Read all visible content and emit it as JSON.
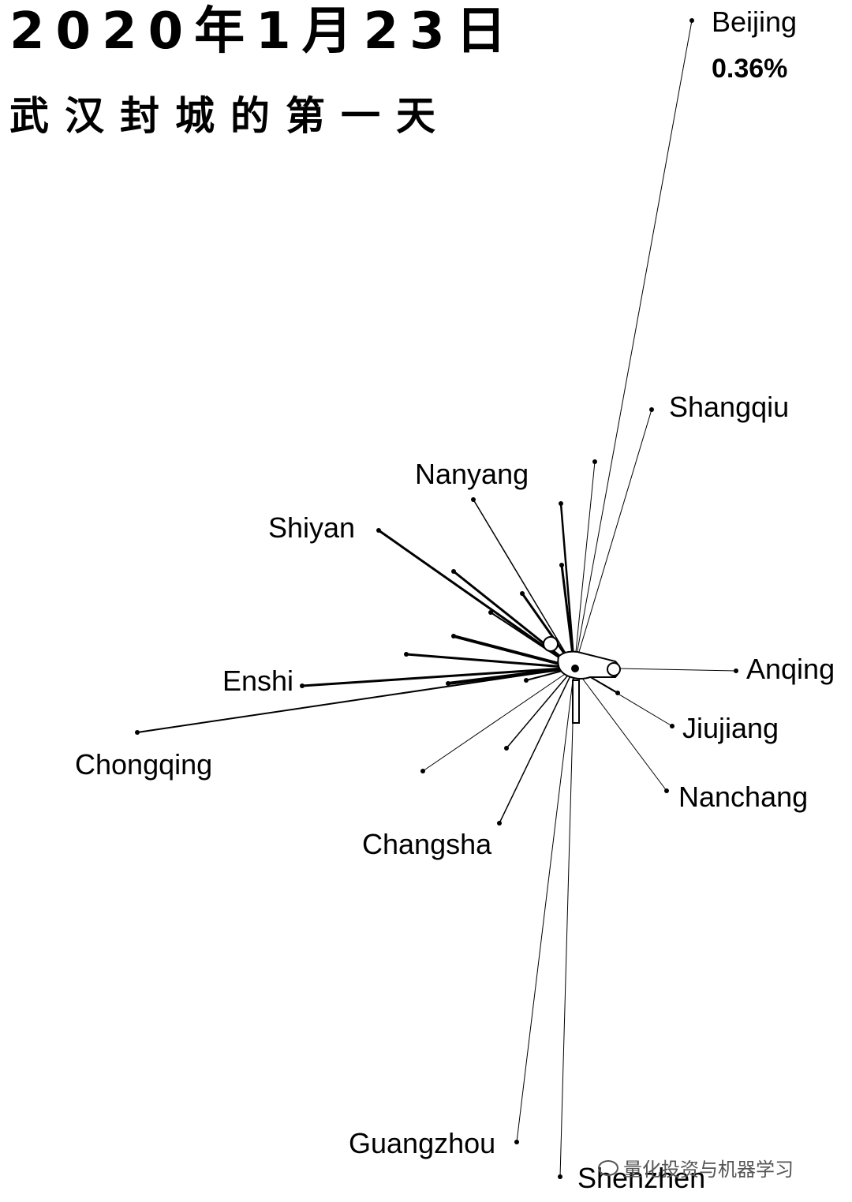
{
  "header": {
    "date": "2020年1月23日",
    "subtitle": "武汉封城的第一天"
  },
  "highlight": {
    "city": "Beijing",
    "share": "0.36%"
  },
  "diagram": {
    "origin": "Wuhan",
    "labeled_destinations": [
      {
        "id": "beijing",
        "name": "Beijing"
      },
      {
        "id": "shangqiu",
        "name": "Shangqiu"
      },
      {
        "id": "nanyang",
        "name": "Nanyang"
      },
      {
        "id": "shiyan",
        "name": "Shiyan"
      },
      {
        "id": "enshi",
        "name": "Enshi"
      },
      {
        "id": "chongqing",
        "name": "Chongqing"
      },
      {
        "id": "changsha",
        "name": "Changsha"
      },
      {
        "id": "anqing",
        "name": "Anqing"
      },
      {
        "id": "jiujiang",
        "name": "Jiujiang"
      },
      {
        "id": "nanchang",
        "name": "Nanchang"
      },
      {
        "id": "guangzhou",
        "name": "Guangzhou"
      },
      {
        "id": "shenzhen",
        "name": "Shenzhen"
      }
    ]
  },
  "watermark": {
    "text": "量化投资与机器学习",
    "icon": "wechat-icon"
  }
}
